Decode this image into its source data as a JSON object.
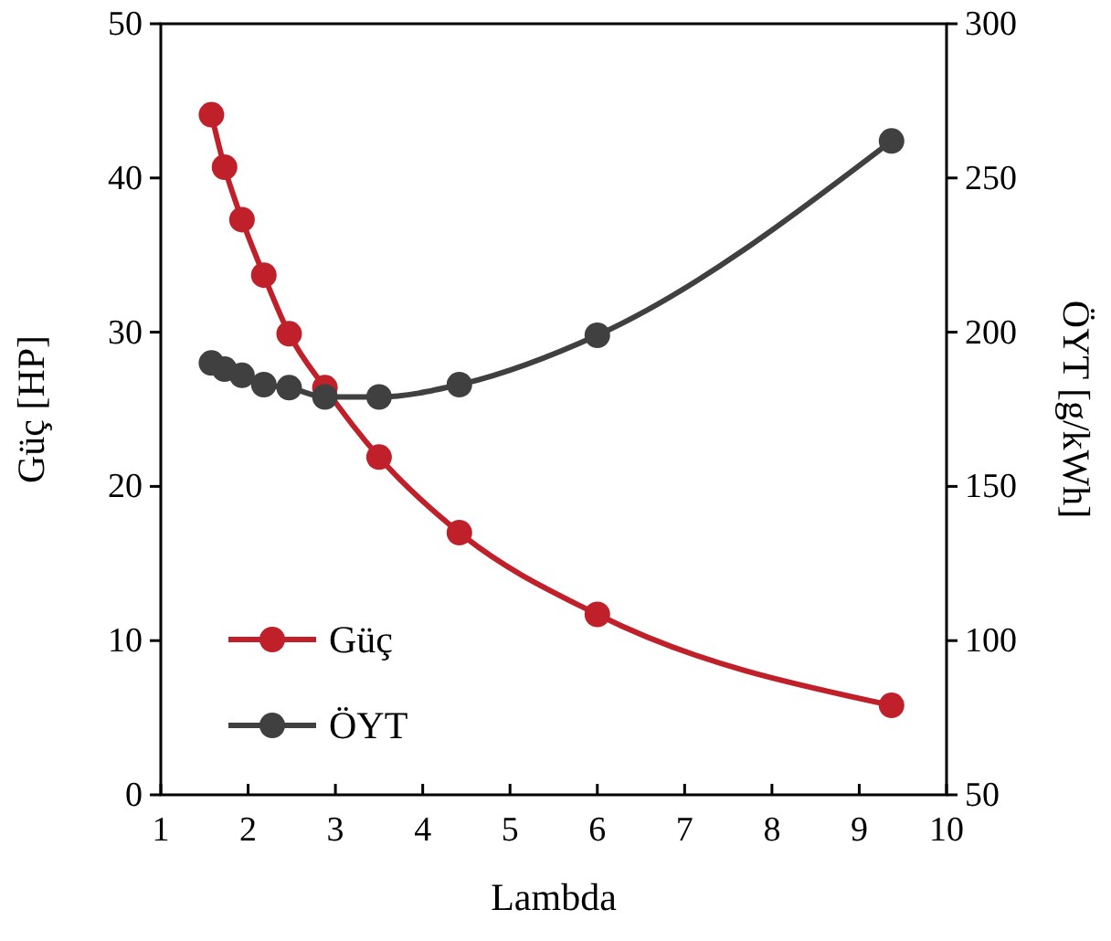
{
  "chart_data": {
    "type": "line",
    "xlabel": "Lambda",
    "ylabel": "Güç [HP]",
    "y2label": "ÖYT [g/kWh]",
    "x": [
      1.58,
      1.73,
      1.93,
      2.18,
      2.47,
      2.88,
      3.5,
      4.42,
      6.0,
      9.37
    ],
    "series": [
      {
        "name": "Güç",
        "color": "#c0202a",
        "values": [
          44.1,
          40.7,
          37.3,
          33.7,
          29.9,
          26.4,
          21.9,
          17.0,
          11.7,
          5.8
        ]
      },
      {
        "name": "ÖYT",
        "color": "#404040",
        "axis": "y2",
        "values": [
          190,
          188,
          186,
          183,
          182,
          179,
          179,
          183,
          199,
          262
        ]
      }
    ],
    "xlim": [
      1,
      10
    ],
    "xticks": [
      1,
      2,
      3,
      4,
      5,
      6,
      7,
      8,
      9,
      10
    ],
    "ylim": [
      0,
      50
    ],
    "yticks": [
      0,
      10,
      20,
      30,
      40,
      50
    ],
    "y2lim": [
      50,
      300
    ],
    "y2ticks": [
      50,
      100,
      150,
      200,
      250,
      300
    ],
    "marker": "circle",
    "line_style": "solid",
    "grid": false,
    "legend": "bottom left"
  }
}
